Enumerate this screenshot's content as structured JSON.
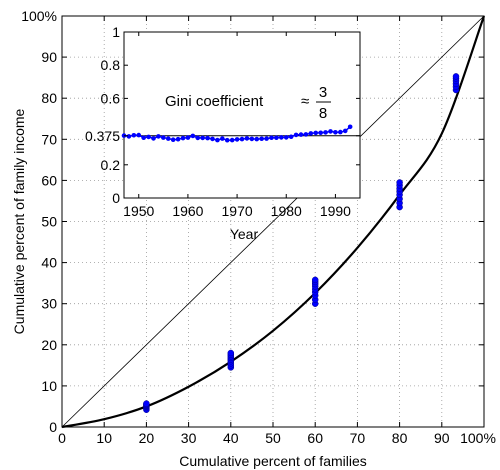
{
  "chart_data": [
    {
      "type": "scatter",
      "xlabel": "Cumulative percent of families",
      "ylabel": "Cumulative percent of family income",
      "xlim": [
        0,
        100
      ],
      "ylim": [
        0,
        100
      ],
      "x_ticks": [
        0,
        10,
        20,
        30,
        40,
        50,
        60,
        70,
        80,
        90,
        100
      ],
      "x_tick_labels": [
        "0",
        "10",
        "20",
        "30",
        "40",
        "50",
        "60",
        "70",
        "80",
        "90",
        "100%"
      ],
      "y_ticks": [
        0,
        10,
        20,
        30,
        40,
        50,
        60,
        70,
        80,
        90,
        100
      ],
      "y_tick_labels": [
        "0",
        "10",
        "20",
        "30",
        "40",
        "50",
        "60",
        "70",
        "80",
        "90",
        "100%"
      ],
      "grid": true,
      "equality_line": {
        "x": [
          0,
          100
        ],
        "y": [
          0,
          100
        ]
      },
      "lorenz_curve": {
        "x": [
          0,
          10,
          20,
          30,
          40,
          50,
          60,
          70,
          80,
          90,
          100
        ],
        "y": [
          0,
          1.9,
          5.0,
          9.8,
          15.9,
          23.4,
          32.6,
          43.6,
          56.5,
          71.4,
          100
        ]
      },
      "points": [
        {
          "x": 20,
          "y": [
            4.2,
            4.6,
            4.9,
            5.1,
            5.3,
            5.5,
            5.7
          ]
        },
        {
          "x": 40,
          "y": [
            14.5,
            15.0,
            15.5,
            16.0,
            16.4,
            16.8,
            17.2,
            17.6,
            18.0
          ]
        },
        {
          "x": 60,
          "y": [
            30.0,
            31.0,
            32.0,
            32.8,
            33.5,
            34.2,
            34.8,
            35.3,
            35.8
          ]
        },
        {
          "x": 80,
          "y": [
            53.5,
            54.5,
            55.5,
            56.5,
            57.3,
            58.0,
            58.8,
            59.5
          ]
        },
        {
          "x": 100,
          "y": [
            82.0,
            82.8,
            83.5,
            84.2,
            84.8,
            85.3
          ]
        }
      ]
    },
    {
      "type": "scatter",
      "xlabel": "Year",
      "xlim": [
        1947,
        1995
      ],
      "ylim": [
        0,
        1
      ],
      "x_ticks": [
        1950,
        1960,
        1970,
        1980,
        1990
      ],
      "x_tick_labels": [
        "1950",
        "1960",
        "1970",
        "1980",
        "1990"
      ],
      "y_ticks": [
        0,
        0.2,
        0.375,
        0.6,
        0.8,
        1
      ],
      "y_tick_labels": [
        "0",
        "0.2",
        "0.375",
        "0.6",
        "0.8",
        "1"
      ],
      "reference_line": 0.375,
      "annotation": "Gini coefficient",
      "annotation_approx": "≈",
      "annotation_numerator": "3",
      "annotation_denominator": "8",
      "series": [
        {
          "x": [
            1947,
            1948,
            1949,
            1950,
            1951,
            1952,
            1953,
            1954,
            1955,
            1956,
            1957,
            1958,
            1959,
            1960,
            1961,
            1962,
            1963,
            1964,
            1965,
            1966,
            1967,
            1968,
            1969,
            1970,
            1971,
            1972,
            1973,
            1974,
            1975,
            1976,
            1977,
            1978,
            1979,
            1980,
            1981,
            1982,
            1983,
            1984,
            1985,
            1986,
            1987,
            1988,
            1989,
            1990,
            1991,
            1992,
            1993
          ],
          "y": [
            0.376,
            0.371,
            0.378,
            0.379,
            0.363,
            0.368,
            0.359,
            0.371,
            0.364,
            0.358,
            0.351,
            0.354,
            0.361,
            0.364,
            0.374,
            0.362,
            0.362,
            0.361,
            0.356,
            0.349,
            0.358,
            0.348,
            0.349,
            0.353,
            0.355,
            0.359,
            0.356,
            0.355,
            0.357,
            0.358,
            0.363,
            0.363,
            0.365,
            0.365,
            0.369,
            0.38,
            0.382,
            0.383,
            0.389,
            0.392,
            0.393,
            0.395,
            0.401,
            0.396,
            0.397,
            0.404,
            0.429
          ]
        }
      ]
    }
  ]
}
